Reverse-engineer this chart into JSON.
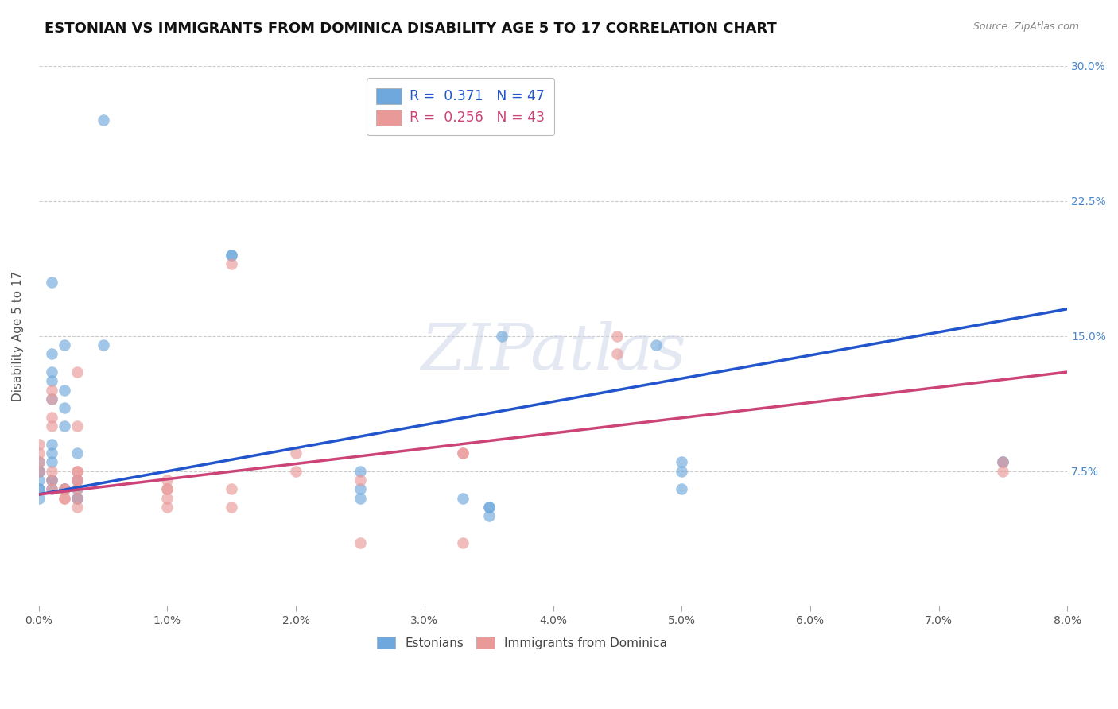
{
  "title": "ESTONIAN VS IMMIGRANTS FROM DOMINICA DISABILITY AGE 5 TO 17 CORRELATION CHART",
  "source": "Source: ZipAtlas.com",
  "ylabel": "Disability Age 5 to 17",
  "xlim": [
    0.0,
    0.08
  ],
  "ylim": [
    0.0,
    0.3
  ],
  "xticks": [
    0.0,
    0.01,
    0.02,
    0.03,
    0.04,
    0.05,
    0.06,
    0.07,
    0.08
  ],
  "xticklabels": [
    "0.0%",
    "1.0%",
    "2.0%",
    "3.0%",
    "4.0%",
    "5.0%",
    "6.0%",
    "7.0%",
    "8.0%"
  ],
  "yticks_right": [
    0.075,
    0.15,
    0.225,
    0.3
  ],
  "ytick_right_labels": [
    "7.5%",
    "15.0%",
    "22.5%",
    "30.0%"
  ],
  "blue_color": "#6fa8dc",
  "pink_color": "#ea9999",
  "blue_line_color": "#2255cc",
  "pink_line_color": "#cc4477",
  "legend_r1": "R =  0.371",
  "legend_n1": "N = 47",
  "legend_r2": "R =  0.256",
  "legend_n2": "N = 43",
  "blue_scatter_x": [
    0.005,
    0.001,
    0.002,
    0.005,
    0.001,
    0.001,
    0.001,
    0.002,
    0.001,
    0.002,
    0.002,
    0.001,
    0.003,
    0.001,
    0.001,
    0.0,
    0.0,
    0.0,
    0.0,
    0.001,
    0.001,
    0.001,
    0.002,
    0.002,
    0.003,
    0.003,
    0.003,
    0.015,
    0.015,
    0.003,
    0.025,
    0.025,
    0.025,
    0.035,
    0.035,
    0.035,
    0.05,
    0.05,
    0.05,
    0.036,
    0.048,
    0.075,
    0.075,
    0.0,
    0.0,
    0.0,
    0.033
  ],
  "blue_scatter_y": [
    0.27,
    0.18,
    0.145,
    0.145,
    0.14,
    0.13,
    0.125,
    0.12,
    0.115,
    0.11,
    0.1,
    0.09,
    0.085,
    0.085,
    0.08,
    0.08,
    0.075,
    0.075,
    0.07,
    0.07,
    0.07,
    0.065,
    0.065,
    0.065,
    0.065,
    0.06,
    0.06,
    0.195,
    0.195,
    0.07,
    0.075,
    0.065,
    0.06,
    0.055,
    0.055,
    0.05,
    0.08,
    0.075,
    0.065,
    0.15,
    0.145,
    0.08,
    0.08,
    0.065,
    0.065,
    0.06,
    0.06
  ],
  "pink_scatter_x": [
    0.001,
    0.001,
    0.001,
    0.001,
    0.0,
    0.0,
    0.0,
    0.0,
    0.001,
    0.001,
    0.001,
    0.002,
    0.002,
    0.002,
    0.002,
    0.003,
    0.003,
    0.003,
    0.003,
    0.01,
    0.01,
    0.01,
    0.01,
    0.01,
    0.015,
    0.015,
    0.015,
    0.02,
    0.02,
    0.025,
    0.025,
    0.003,
    0.003,
    0.033,
    0.033,
    0.033,
    0.045,
    0.045,
    0.075,
    0.075,
    0.003,
    0.003,
    0.003
  ],
  "pink_scatter_y": [
    0.12,
    0.115,
    0.105,
    0.1,
    0.09,
    0.085,
    0.08,
    0.075,
    0.075,
    0.07,
    0.065,
    0.065,
    0.065,
    0.06,
    0.06,
    0.07,
    0.065,
    0.06,
    0.055,
    0.07,
    0.065,
    0.065,
    0.06,
    0.055,
    0.19,
    0.065,
    0.055,
    0.085,
    0.075,
    0.035,
    0.07,
    0.13,
    0.1,
    0.085,
    0.085,
    0.035,
    0.15,
    0.14,
    0.08,
    0.075,
    0.075,
    0.07,
    0.075
  ],
  "background_color": "#ffffff",
  "grid_color": "#cccccc",
  "watermark": "ZIPatlas",
  "title_fontsize": 13,
  "axis_fontsize": 11,
  "tick_fontsize": 10
}
